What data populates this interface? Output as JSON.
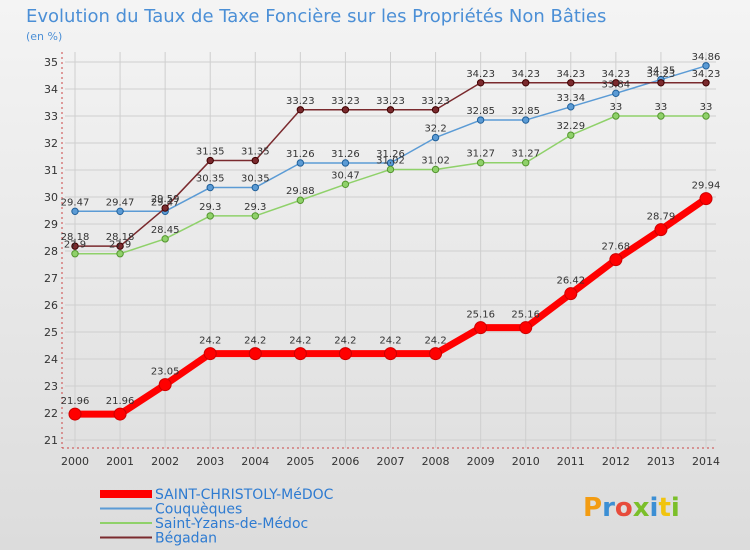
{
  "title": "Evolution du Taux de Taxe Foncière sur les Propriétés Non Bâties",
  "subtitle": "(en %)",
  "brand": "Proxiti",
  "chart_data": {
    "type": "line",
    "title": "Evolution du Taux de Taxe Foncière sur les Propriétés Non Bâties",
    "ylabel": "(en %)",
    "xlabel": "",
    "x": [
      2000,
      2001,
      2002,
      2003,
      2004,
      2005,
      2006,
      2007,
      2008,
      2009,
      2010,
      2011,
      2012,
      2013,
      2014
    ],
    "ylim": [
      21,
      35
    ],
    "yticks": [
      21,
      22,
      23,
      24,
      25,
      26,
      27,
      28,
      29,
      30,
      31,
      32,
      33,
      34,
      35
    ],
    "grid": true,
    "legend_position": "bottom-left",
    "series": [
      {
        "name": "Couquèques",
        "color": "#5b9bd5",
        "values": [
          29.47,
          29.47,
          29.47,
          30.35,
          30.35,
          31.26,
          31.26,
          31.26,
          32.2,
          32.85,
          32.85,
          33.34,
          33.84,
          34.35,
          34.86
        ]
      },
      {
        "name": "Saint-Yzans-de-Médoc",
        "color": "#8fd16a",
        "values": [
          27.9,
          27.9,
          28.45,
          29.3,
          29.3,
          29.88,
          30.47,
          31.02,
          31.02,
          31.27,
          31.27,
          32.29,
          33,
          33,
          33
        ]
      },
      {
        "name": "Bégadan",
        "color": "#7a2a2e",
        "values": [
          28.18,
          28.18,
          29.59,
          31.35,
          31.35,
          33.23,
          33.23,
          33.23,
          33.23,
          34.23,
          34.23,
          34.23,
          34.23,
          34.23,
          34.23
        ]
      },
      {
        "name": "SAINT-CHRISTOLY-MéDOC",
        "color": "#ff0000",
        "values": [
          21.96,
          21.96,
          23.05,
          24.2,
          24.2,
          24.2,
          24.2,
          24.2,
          24.2,
          25.16,
          25.16,
          26.42,
          27.68,
          28.79,
          29.94
        ]
      }
    ],
    "labels": {
      "Couquèques": [
        "29.47",
        "29.47",
        "29.47",
        "30.35",
        "30.35",
        "31.26",
        "31.26",
        "31.26",
        "32.2",
        "32.85",
        "32.85",
        "33.34",
        "33.84",
        "34.35",
        "34.86"
      ],
      "Saint-Yzans-de-Médoc": [
        "27.9",
        "27.9",
        "28.45",
        "29.3",
        "29.3",
        "29.88",
        "30.47",
        "31.02",
        "31.02",
        "31.27",
        "31.27",
        "32.29",
        "33",
        "33",
        "33"
      ],
      "Bégadan": [
        "28.18",
        "28.18",
        "29.59",
        "31.35",
        "31.35",
        "33.23",
        "33.23",
        "33.23",
        "33.23",
        "34.23",
        "34.23",
        "34.23",
        "34.23",
        "34.23",
        "34.23"
      ],
      "SAINT-CHRISTOLY-MéDOC": [
        "21.96",
        "21.96",
        "23.05",
        "24.2",
        "24.2",
        "24.2",
        "24.2",
        "24.2",
        "24.2",
        "25.16",
        "25.16",
        "26.42",
        "27.68",
        "28.79",
        "29.94"
      ]
    },
    "legend": [
      "SAINT-CHRISTOLY-MéDOC",
      "Couquèques",
      "Saint-Yzans-de-Médoc",
      "Bégadan"
    ]
  }
}
